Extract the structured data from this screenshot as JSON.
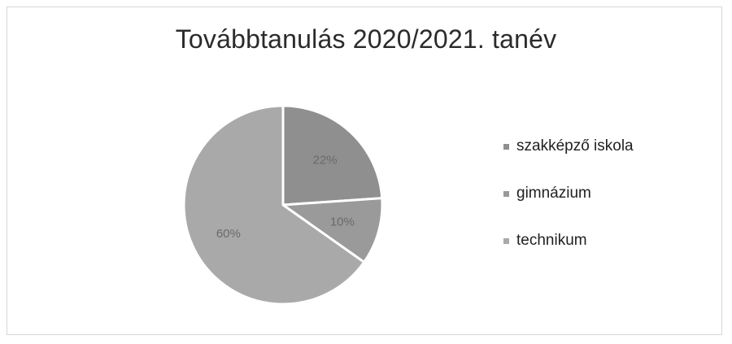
{
  "chart_data": {
    "type": "pie",
    "title": "Továbbtanulás 2020/2021. tanév",
    "slices": [
      {
        "label": "szakképző iskola",
        "value": 22,
        "display": "22%",
        "color": "#8f8f8f"
      },
      {
        "label": "gimnázium",
        "value": 10,
        "display": "10%",
        "color": "#9a9a9a"
      },
      {
        "label": "technikum",
        "value": 60,
        "display": "60%",
        "color": "#a9a9a9"
      }
    ],
    "legend_position": "right",
    "slice_border_color": "#ffffff"
  }
}
